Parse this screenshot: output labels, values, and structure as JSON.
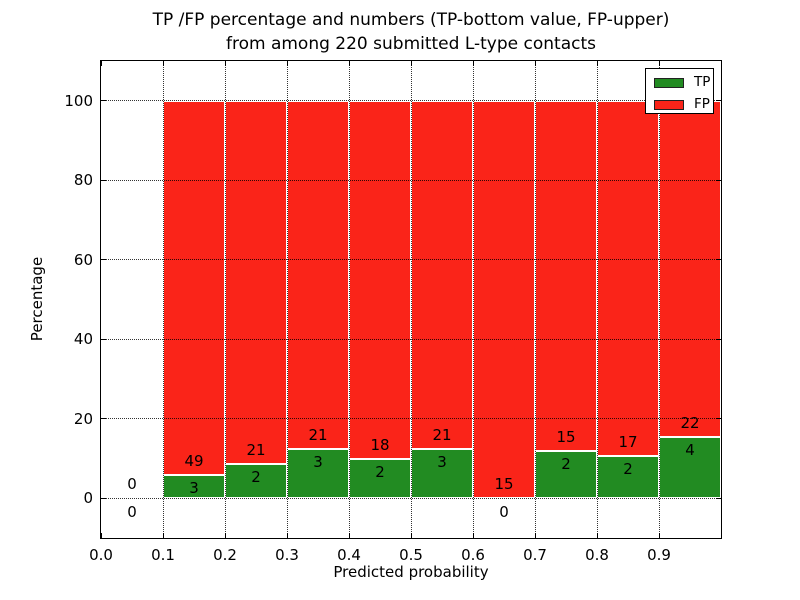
{
  "title": {
    "line1": "TP /FP percentage and numbers (TP-bottom value, FP-upper)",
    "line2": "from among 220 submitted L-type contacts"
  },
  "axes": {
    "xlabel": "Predicted probability",
    "ylabel": "Percentage",
    "x_ticks": [
      "0.0",
      "0.1",
      "0.2",
      "0.3",
      "0.4",
      "0.5",
      "0.6",
      "0.7",
      "0.8",
      "0.9"
    ],
    "y_ticks": [
      0,
      20,
      40,
      60,
      80,
      100
    ],
    "xlim": [
      0.0,
      1.0
    ],
    "ylim": [
      -10,
      110
    ],
    "grid_style": "dotted",
    "grid_color": "#000000"
  },
  "legend": {
    "items": [
      {
        "label": "TP",
        "color": "#228B22"
      },
      {
        "label": "FP",
        "color": "#FA2419"
      }
    ],
    "position": "upper right"
  },
  "chart_data": {
    "type": "bar",
    "stacked": true,
    "normalization": "each non-empty bin scaled so TP+FP = 100%",
    "title": "TP /FP percentage and numbers (TP-bottom value, FP-upper) from among 220 submitted L-type contacts",
    "xlabel": "Predicted probability",
    "ylabel": "Percentage",
    "xlim": [
      0.0,
      1.0
    ],
    "ylim": [
      -10,
      110
    ],
    "grid": "dotted",
    "legend_position": "upper right",
    "total_contacts": 220,
    "series_names": [
      "TP",
      "FP"
    ],
    "tp_color": "#228B22",
    "fp_color": "#FA2419",
    "bar_edge_color": "#ffffff",
    "bins": [
      {
        "x0": 0.0,
        "x1": 0.1,
        "tp": 0,
        "fp": 0,
        "tp_pct": 0.0
      },
      {
        "x0": 0.1,
        "x1": 0.2,
        "tp": 3,
        "fp": 49,
        "tp_pct": 5.77
      },
      {
        "x0": 0.2,
        "x1": 0.3,
        "tp": 2,
        "fp": 21,
        "tp_pct": 8.7
      },
      {
        "x0": 0.3,
        "x1": 0.4,
        "tp": 3,
        "fp": 21,
        "tp_pct": 12.5
      },
      {
        "x0": 0.4,
        "x1": 0.5,
        "tp": 2,
        "fp": 18,
        "tp_pct": 10.0
      },
      {
        "x0": 0.5,
        "x1": 0.6,
        "tp": 3,
        "fp": 21,
        "tp_pct": 12.5
      },
      {
        "x0": 0.6,
        "x1": 0.7,
        "tp": 0,
        "fp": 15,
        "tp_pct": 0.0
      },
      {
        "x0": 0.7,
        "x1": 0.8,
        "tp": 2,
        "fp": 15,
        "tp_pct": 11.76
      },
      {
        "x0": 0.8,
        "x1": 0.9,
        "tp": 2,
        "fp": 17,
        "tp_pct": 10.53
      },
      {
        "x0": 0.9,
        "x1": 1.0,
        "tp": 4,
        "fp": 22,
        "tp_pct": 15.38
      }
    ]
  }
}
